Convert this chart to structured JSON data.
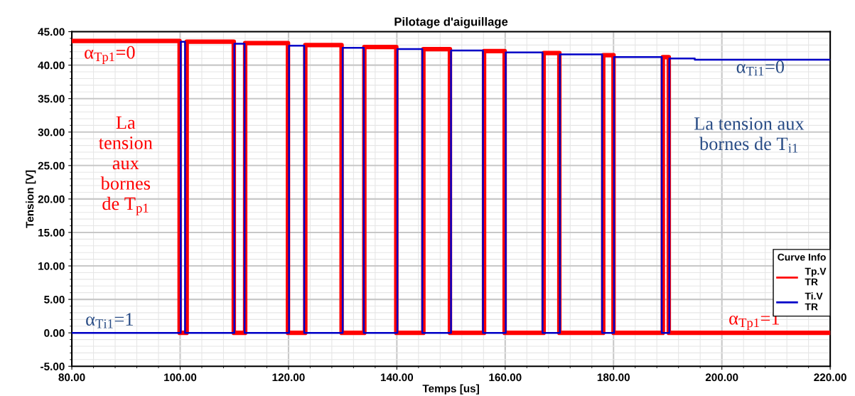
{
  "chart_data": {
    "type": "step",
    "title": "Pilotage d'aiguillage",
    "xlabel": "Temps [us]",
    "ylabel": "Tension [V]",
    "legend_title": "Curve Info",
    "series": [
      {
        "name": "Tp.V\nTR",
        "color": "#ff0000",
        "x": [
          80,
          99.9,
          101.2,
          109.9,
          112.0,
          119.9,
          123.1,
          129.8,
          134.0,
          139.9,
          144.9,
          149.8,
          156.1,
          159.9,
          167.1,
          170.0,
          178.1,
          180.0,
          189.1,
          190.2,
          220
        ],
        "values": [
          43.6,
          0,
          43.5,
          0,
          43.3,
          0,
          43.0,
          0,
          42.7,
          0,
          42.4,
          0,
          42.1,
          0,
          41.8,
          0,
          41.5,
          0,
          41.2,
          0,
          0
        ]
      },
      {
        "name": "Ti.V\nTR",
        "color": "#0000c8",
        "x": [
          80,
          100.1,
          100.9,
          110.0,
          111.9,
          120.1,
          122.9,
          130.0,
          133.9,
          140.1,
          144.7,
          150.0,
          155.9,
          160.1,
          166.9,
          170.1,
          177.9,
          180.1,
          188.9,
          190.3,
          195,
          220
        ],
        "values": [
          0,
          43.5,
          0,
          43.2,
          0,
          42.9,
          0,
          42.6,
          0,
          42.4,
          0,
          42.2,
          0,
          41.9,
          0,
          41.6,
          0,
          41.2,
          0,
          41.0,
          40.8,
          40.8
        ]
      }
    ],
    "annotations": [
      "α$_{Tp1}$=0",
      "La\ntension\naux\nbornes\nde T$_{p1}$",
      "α$_{Ti1}$=1",
      "α$_{Ti1}$=0",
      "La tension aux\nbornes de T$_{i1}$",
      "α$_{Tp1}$=1"
    ],
    "xlim": [
      80,
      220
    ],
    "xticks": [
      {
        "value": 80,
        "label": "80.00"
      },
      {
        "value": 100,
        "label": "100.00"
      },
      {
        "value": 120,
        "label": "120.00"
      },
      {
        "value": 140,
        "label": "140.00"
      },
      {
        "value": 160,
        "label": "160.00"
      },
      {
        "value": 180,
        "label": "180.00"
      },
      {
        "value": 200,
        "label": "200.00"
      },
      {
        "value": 220,
        "label": "220.00"
      }
    ],
    "ylim": [
      -5,
      45
    ],
    "yticks": [
      {
        "value": -5,
        "label": "-5.00"
      },
      {
        "value": 0,
        "label": "0.00"
      },
      {
        "value": 5,
        "label": "5.00"
      },
      {
        "value": 10,
        "label": "10.00"
      },
      {
        "value": 15,
        "label": "15.00"
      },
      {
        "value": 20,
        "label": "20.00"
      },
      {
        "value": 25,
        "label": "25.00"
      },
      {
        "value": 30,
        "label": "30.00"
      },
      {
        "value": 35,
        "label": "35.00"
      },
      {
        "value": 40,
        "label": "40.00"
      },
      {
        "value": 45,
        "label": "45.00"
      }
    ],
    "grid": true,
    "legend": "bottom right",
    "line_style": "solid"
  }
}
